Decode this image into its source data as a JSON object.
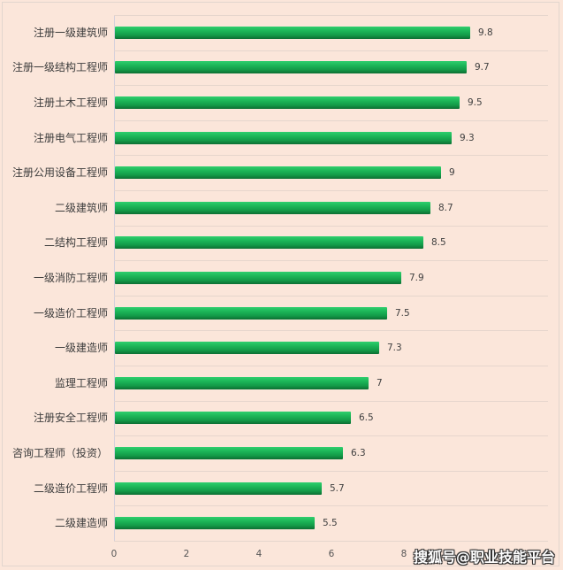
{
  "chart_data": {
    "type": "bar",
    "orientation": "horizontal",
    "title": "",
    "xlabel": "",
    "ylabel": "",
    "categories": [
      "注册一级建筑师",
      "注册一级结构工程师",
      "注册土木工程师",
      "注册电气工程师",
      "注册公用设备工程师",
      "二级建筑师",
      "二结构工程师",
      "一级消防工程师",
      "一级造价工程师",
      "一级建造师",
      "监理工程师",
      "注册安全工程师",
      "咨询工程师（投资）",
      "二级造价工程师",
      "二级建造师"
    ],
    "values": [
      9.8,
      9.7,
      9.5,
      9.3,
      9,
      8.7,
      8.5,
      7.9,
      7.5,
      7.3,
      7,
      6.5,
      6.3,
      5.7,
      5.5
    ],
    "value_labels": [
      "9.8",
      "9.7",
      "9.5",
      "9.3",
      "9",
      "8.7",
      "8.5",
      "7.9",
      "7.5",
      "7.3",
      "7",
      "6.5",
      "6.3",
      "5.7",
      "5.5"
    ],
    "xlim": [
      0,
      10
    ],
    "x_ticks": [
      "0",
      "2",
      "4",
      "6",
      "8",
      "10"
    ],
    "grid": "horizontal-between-rows",
    "legend": "none",
    "bar_color": "#1cb658",
    "background_color": "#fbe6da"
  },
  "watermark": "搜狐号@职业技能平台"
}
